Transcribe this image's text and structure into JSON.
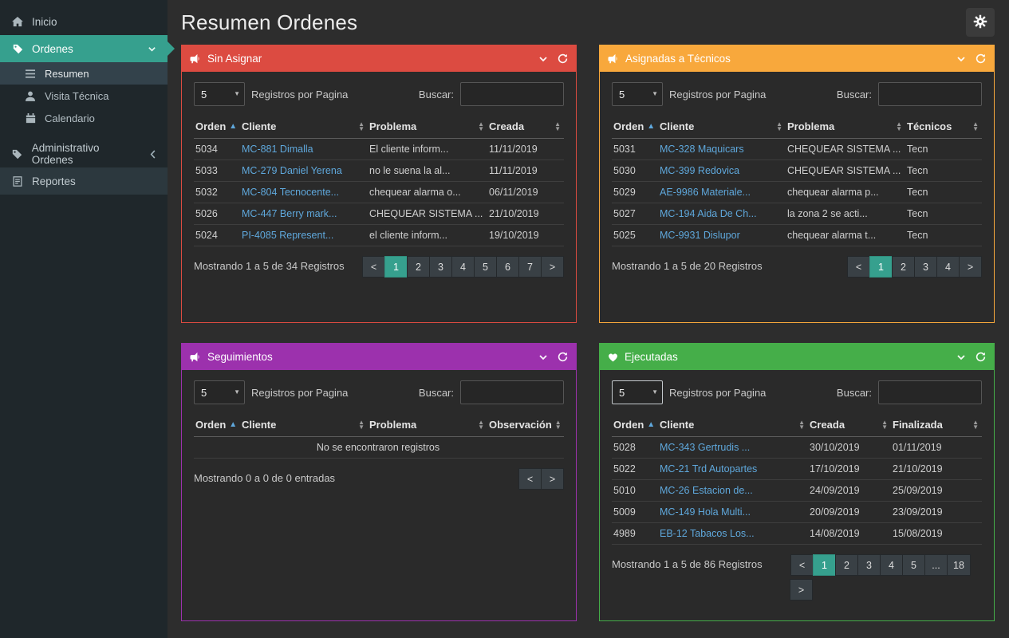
{
  "colors": {
    "accent_teal": "#36a08e",
    "panel_red": "#dc4b41",
    "panel_orange": "#f8a83c",
    "panel_purple": "#9c31ad",
    "panel_green": "#45ae49",
    "link_blue": "#5fa8dc"
  },
  "header": {
    "title": "Resumen Ordenes",
    "settings_icon": "gear-icon"
  },
  "sidebar": {
    "items": [
      {
        "label": "Inicio",
        "icon": "home-icon"
      },
      {
        "label": "Ordenes",
        "icon": "tag-icon",
        "state": "active"
      },
      {
        "label": "Resumen",
        "icon": "list-icon",
        "state": "highlighted"
      },
      {
        "label": "Visita Técnica",
        "icon": "user-icon"
      },
      {
        "label": "Calendario",
        "icon": "calendar-icon"
      },
      {
        "label": "Administrativo Ordenes",
        "icon": "tag-icon"
      },
      {
        "label": "Reportes",
        "icon": "report-icon"
      }
    ]
  },
  "controls": {
    "page_size_value": "5",
    "page_size_label": "Registros por Pagina",
    "search_label": "Buscar:"
  },
  "panels": [
    {
      "title": "Sin Asignar",
      "icon": "bullhorn-icon",
      "color": "#dc4b41",
      "columns": [
        "Orden",
        "Cliente",
        "Problema",
        "Creada"
      ],
      "link_col": 1,
      "rows": [
        [
          "5034",
          "MC-881 Dimalla",
          "El cliente inform...",
          "11/11/2019"
        ],
        [
          "5033",
          "MC-279 Daniel Yerena",
          "no le suena la al...",
          "11/11/2019"
        ],
        [
          "5032",
          "MC-804 Tecnocente...",
          "chequear alarma o...",
          "06/11/2019"
        ],
        [
          "5026",
          "MC-447 Berry mark...",
          "CHEQUEAR SISTEMA ...",
          "21/10/2019"
        ],
        [
          "5024",
          "PI-4085 Represent...",
          "el cliente inform...",
          "19/10/2019"
        ]
      ],
      "footer": "Mostrando 1 a 5 de 34 Registros",
      "pages": [
        "<",
        "1",
        "2",
        "3",
        "4",
        "5",
        "6",
        "7",
        ">"
      ],
      "active_page": "1"
    },
    {
      "title": "Asignadas a Técnicos",
      "icon": "bullhorn-icon",
      "color": "#f8a83c",
      "columns": [
        "Orden",
        "Cliente",
        "Problema",
        "Técnicos"
      ],
      "link_col": 1,
      "rows": [
        [
          "5031",
          "MC-328 Maquicars",
          "CHEQUEAR SISTEMA ...",
          "Tecn"
        ],
        [
          "5030",
          "MC-399 Redovica",
          "CHEQUEAR SISTEMA ...",
          "Tecn"
        ],
        [
          "5029",
          "AE-9986 Materiale...",
          "chequear alarma p...",
          "Tecn"
        ],
        [
          "5027",
          "MC-194 Aida De Ch...",
          "la zona 2 se acti...",
          "Tecn"
        ],
        [
          "5025",
          "MC-9931 Dislupor",
          "chequear alarma t...",
          "Tecn"
        ]
      ],
      "footer": "Mostrando 1 a 5 de 20 Registros",
      "pages": [
        "<",
        "1",
        "2",
        "3",
        "4",
        ">"
      ],
      "active_page": "1"
    },
    {
      "title": "Seguimientos",
      "icon": "bullhorn-icon",
      "color": "#9c31ad",
      "columns": [
        "Orden",
        "Cliente",
        "Problema",
        "Observación"
      ],
      "link_col": 1,
      "rows": [],
      "empty_text": "No se encontraron registros",
      "footer": "Mostrando 0 a 0 de 0 entradas",
      "pages": [
        "<",
        ">"
      ]
    },
    {
      "title": "Ejecutadas",
      "icon": "heart-icon",
      "color": "#45ae49",
      "columns": [
        "Orden",
        "Cliente",
        "Creada",
        "Finalizada"
      ],
      "link_col": 1,
      "rows": [
        [
          "5028",
          "MC-343 Gertrudis ...",
          "30/10/2019",
          "01/11/2019"
        ],
        [
          "5022",
          "MC-21 Trd Autopartes",
          "17/10/2019",
          "21/10/2019"
        ],
        [
          "5010",
          "MC-26 Estacion de...",
          "24/09/2019",
          "25/09/2019"
        ],
        [
          "5009",
          "MC-149 Hola Multi...",
          "20/09/2019",
          "23/09/2019"
        ],
        [
          "4989",
          "EB-12 Tabacos Los...",
          "14/08/2019",
          "15/08/2019"
        ]
      ],
      "footer": "Mostrando 1 a 5 de 86 Registros",
      "pages": [
        "<",
        "1",
        "2",
        "3",
        "4",
        "5",
        "...",
        "18",
        ">"
      ],
      "active_page": "1"
    }
  ]
}
